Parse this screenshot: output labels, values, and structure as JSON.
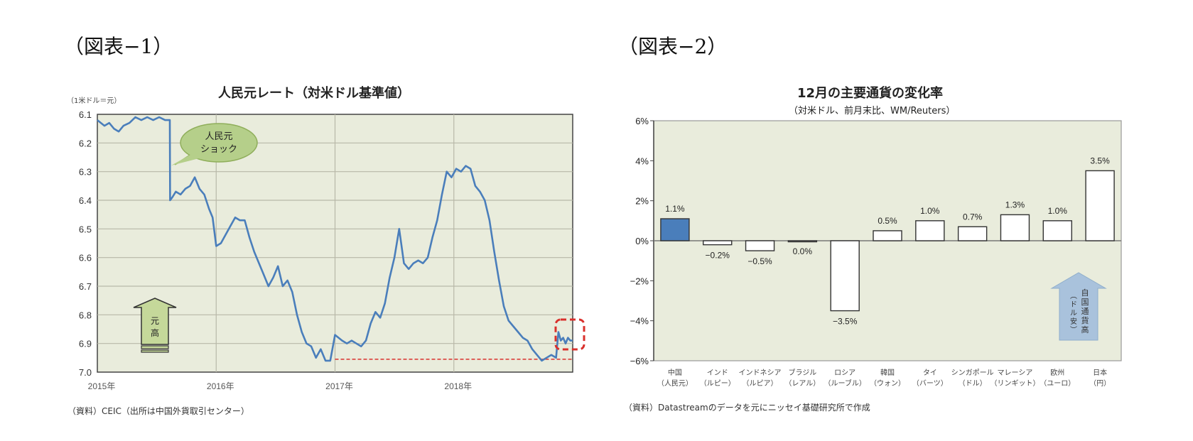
{
  "figure1": {
    "label": "（図表−1）",
    "title": "人民元レート（対米ドル基準値）",
    "unit": "（1米ドル＝元）",
    "source": "（資料）CEIC（出所は中国外貨取引センター）",
    "callout": {
      "line1": "人民元",
      "line2": "ショック",
      "fill": "#b5cf8a"
    },
    "arrow": {
      "line1": "元",
      "line2": "高",
      "fill": "#c5d89a"
    },
    "colors": {
      "line": "#4a7ebb",
      "plot_bg": "#e9ecdc",
      "dash": "#d9302c"
    }
  },
  "figure2": {
    "label": "（図表−2）",
    "title": "12月の主要通貨の変化率",
    "subtitle": "（対米ドル、前月末比、WM/Reuters）",
    "source": "（資料）Datastreamのデータを元にニッセイ基礎研究所で作成",
    "arrow": {
      "line1": "自国通貨高",
      "line2": "（ドル安）",
      "fill": "#a9c2dc"
    },
    "colors": {
      "highlight": "#4a7ebb",
      "bar": "#ffffff",
      "plot_bg": "#e9ecdc"
    }
  },
  "chart_data": [
    {
      "type": "line",
      "title": "人民元レート（対米ドル基準値）",
      "xlabel": "",
      "ylabel": "（1米ドル＝元）",
      "x_ticks": [
        "2015年",
        "2016年",
        "2017年",
        "2018年"
      ],
      "y_ticks": [
        "6.1",
        "6.2",
        "6.3",
        "6.4",
        "6.5",
        "6.6",
        "6.7",
        "6.8",
        "6.9",
        "7.0"
      ],
      "ylim": [
        7.0,
        6.1
      ],
      "y_inverted": true,
      "xlim": [
        2015.0,
        2019.0
      ],
      "grid": true,
      "annotations": [
        "人民元ショック",
        "元高",
        "dashed reference line at ~6.96 from 2017 to end",
        "red dashed box around Dec 2018"
      ],
      "series": [
        {
          "name": "人民元基準値",
          "x": [
            2015.0,
            2015.03,
            2015.06,
            2015.1,
            2015.14,
            2015.18,
            2015.22,
            2015.27,
            2015.32,
            2015.37,
            2015.42,
            2015.47,
            2015.52,
            2015.57,
            2015.61,
            2015.612,
            2015.63,
            2015.66,
            2015.7,
            2015.74,
            2015.78,
            2015.82,
            2015.86,
            2015.9,
            2015.94,
            2015.97,
            2016.0,
            2016.04,
            2016.08,
            2016.12,
            2016.16,
            2016.2,
            2016.24,
            2016.28,
            2016.32,
            2016.36,
            2016.4,
            2016.44,
            2016.48,
            2016.52,
            2016.56,
            2016.6,
            2016.64,
            2016.68,
            2016.72,
            2016.76,
            2016.8,
            2016.84,
            2016.88,
            2016.92,
            2016.96,
            2017.0,
            2017.03,
            2017.06,
            2017.1,
            2017.14,
            2017.18,
            2017.22,
            2017.26,
            2017.3,
            2017.34,
            2017.38,
            2017.42,
            2017.46,
            2017.5,
            2017.54,
            2017.58,
            2017.62,
            2017.66,
            2017.7,
            2017.74,
            2017.78,
            2017.82,
            2017.86,
            2017.9,
            2017.94,
            2017.98,
            2018.02,
            2018.06,
            2018.1,
            2018.14,
            2018.18,
            2018.22,
            2018.26,
            2018.3,
            2018.34,
            2018.38,
            2018.42,
            2018.46,
            2018.5,
            2018.54,
            2018.58,
            2018.62,
            2018.66,
            2018.7,
            2018.74,
            2018.78,
            2018.82,
            2018.86,
            2018.88,
            2018.9,
            2018.92,
            2018.94,
            2018.96,
            2018.98,
            2019.0
          ],
          "y": [
            6.12,
            6.13,
            6.14,
            6.13,
            6.15,
            6.16,
            6.14,
            6.13,
            6.11,
            6.12,
            6.11,
            6.12,
            6.11,
            6.12,
            6.12,
            6.4,
            6.39,
            6.37,
            6.38,
            6.36,
            6.35,
            6.32,
            6.36,
            6.38,
            6.43,
            6.46,
            6.56,
            6.55,
            6.52,
            6.49,
            6.46,
            6.47,
            6.47,
            6.53,
            6.58,
            6.62,
            6.66,
            6.7,
            6.67,
            6.63,
            6.7,
            6.68,
            6.72,
            6.8,
            6.86,
            6.9,
            6.91,
            6.95,
            6.92,
            6.96,
            6.96,
            6.87,
            6.88,
            6.89,
            6.9,
            6.89,
            6.9,
            6.91,
            6.89,
            6.83,
            6.79,
            6.81,
            6.76,
            6.67,
            6.6,
            6.5,
            6.62,
            6.64,
            6.62,
            6.61,
            6.62,
            6.6,
            6.53,
            6.47,
            6.38,
            6.3,
            6.32,
            6.29,
            6.3,
            6.28,
            6.29,
            6.35,
            6.37,
            6.4,
            6.47,
            6.58,
            6.68,
            6.77,
            6.82,
            6.84,
            6.86,
            6.88,
            6.89,
            6.92,
            6.94,
            6.96,
            6.95,
            6.94,
            6.95,
            6.86,
            6.89,
            6.88,
            6.9,
            6.88,
            6.89,
            6.89
          ]
        }
      ]
    },
    {
      "type": "bar",
      "title": "12月の主要通貨の変化率",
      "subtitle": "（対米ドル、前月末比、WM/Reuters）",
      "xlabel": "",
      "ylabel": "",
      "categories": [
        "中国（人民元）",
        "インド（ルピー）",
        "インドネシア（ルピア）",
        "ブラジル（レアル）",
        "ロシア（ルーブル）",
        "韓国（ウォン）",
        "タイ（バーツ）",
        "シンガポール（ドル）",
        "マレーシア（リンギット）",
        "欧州（ユーロ）",
        "日本（円）"
      ],
      "category_lines": [
        [
          "中国",
          "（人民元）"
        ],
        [
          "インド",
          "（ルピー）"
        ],
        [
          "インドネシア",
          "（ルピア）"
        ],
        [
          "ブラジル",
          "（レアル）"
        ],
        [
          "ロシア",
          "（ルーブル）"
        ],
        [
          "韓国",
          "（ウォン）"
        ],
        [
          "タイ",
          "（バーツ）"
        ],
        [
          "シンガポール",
          "（ドル）"
        ],
        [
          "マレーシア",
          "（リンギット）"
        ],
        [
          "欧州",
          "（ユーロ）"
        ],
        [
          "日本",
          "（円）"
        ]
      ],
      "values": [
        1.1,
        -0.2,
        -0.5,
        0.0,
        -3.5,
        0.5,
        1.0,
        0.7,
        1.3,
        1.0,
        3.5
      ],
      "labels": [
        "1.1%",
        "−0.2%",
        "−0.5%",
        "0.0%",
        "−3.5%",
        "0.5%",
        "1.0%",
        "0.7%",
        "1.3%",
        "1.0%",
        "3.5%"
      ],
      "y_ticks": [
        "6%",
        "4%",
        "2%",
        "0%",
        "−2%",
        "−4%",
        "−6%"
      ],
      "ylim": [
        -6,
        6
      ],
      "grid": false,
      "annotations": [
        "自国通貨高（ドル安）"
      ]
    }
  ]
}
